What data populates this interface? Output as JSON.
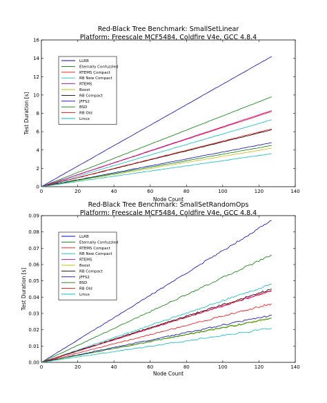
{
  "chart_data": [
    {
      "type": "line",
      "title": "Red-Black Tree Benchmark: SmallSetLinear",
      "subtitle": "Platform: Freescale MCF5484, Coldfire V4e, GCC 4.8.4",
      "xlabel": "Node Count",
      "ylabel": "Test Duration [s]",
      "xlim": [
        0,
        140
      ],
      "ylim": [
        0,
        16
      ],
      "xticks": [
        0,
        20,
        40,
        60,
        80,
        100,
        120,
        140
      ],
      "yticks": [
        0,
        2,
        4,
        6,
        8,
        10,
        12,
        14,
        16
      ],
      "x": [
        0,
        127
      ],
      "legend_position": "upper-left",
      "grid": false,
      "series": [
        {
          "name": "LLRB",
          "color": "#0000cc",
          "values": [
            0,
            14.2
          ]
        },
        {
          "name": "Eternally Confuzzled",
          "color": "#008000",
          "values": [
            0,
            9.8
          ]
        },
        {
          "name": "RTEMS Compact",
          "color": "#ff0000",
          "values": [
            0,
            8.2
          ]
        },
        {
          "name": "RB New Compact",
          "color": "#00bfbf",
          "values": [
            0,
            7.3
          ]
        },
        {
          "name": "RTEMS",
          "color": "#bf00bf",
          "values": [
            0,
            8.3
          ]
        },
        {
          "name": "Boost",
          "color": "#bfbf00",
          "values": [
            0,
            4.2
          ]
        },
        {
          "name": "RB Compact",
          "color": "#000000",
          "values": [
            0,
            6.2
          ]
        },
        {
          "name": "JFFS2",
          "color": "#0000cc",
          "values": [
            0,
            4.8
          ]
        },
        {
          "name": "BSD",
          "color": "#008000",
          "values": [
            0,
            4.5
          ]
        },
        {
          "name": "RB Old",
          "color": "#ff0000",
          "values": [
            0,
            6.3
          ]
        },
        {
          "name": "Linux",
          "color": "#00bfbf",
          "values": [
            0,
            3.6
          ]
        }
      ]
    },
    {
      "type": "line",
      "title": "Red-Black Tree Benchmark: SmallSetRandomOps",
      "subtitle": "Platform: Freescale MCF5484, Coldfire V4e, GCC 4.8.4",
      "xlabel": "Node Count",
      "ylabel": "Test Duration [s]",
      "xlim": [
        0,
        140
      ],
      "ylim": [
        0,
        0.09
      ],
      "xticks": [
        0,
        20,
        40,
        60,
        80,
        100,
        120,
        140
      ],
      "yticks": [
        "0.00",
        "0.01",
        "0.02",
        "0.03",
        "0.04",
        "0.05",
        "0.06",
        "0.07",
        "0.08",
        "0.09"
      ],
      "x": [
        0,
        127
      ],
      "legend_position": "upper-left",
      "grid": false,
      "series": [
        {
          "name": "LLRB",
          "color": "#0000cc",
          "values": [
            0,
            0.087
          ]
        },
        {
          "name": "Eternally Confuzzled",
          "color": "#008000",
          "values": [
            0,
            0.066
          ]
        },
        {
          "name": "RTEMS Compact",
          "color": "#ff0000",
          "values": [
            0,
            0.036
          ]
        },
        {
          "name": "RB New Compact",
          "color": "#00bfbf",
          "values": [
            0,
            0.048
          ]
        },
        {
          "name": "RTEMS",
          "color": "#bf00bf",
          "values": [
            0,
            0.044
          ]
        },
        {
          "name": "Boost",
          "color": "#bfbf00",
          "values": [
            0,
            0.027
          ]
        },
        {
          "name": "RB Compact",
          "color": "#000000",
          "values": [
            0,
            0.045
          ]
        },
        {
          "name": "JFFS2",
          "color": "#0000cc",
          "values": [
            0,
            0.029
          ]
        },
        {
          "name": "BSD",
          "color": "#008000",
          "values": [
            0,
            0.027
          ]
        },
        {
          "name": "RB Old",
          "color": "#ff0000",
          "values": [
            0,
            0.044
          ]
        },
        {
          "name": "Linux",
          "color": "#00bfbf",
          "values": [
            0,
            0.021
          ]
        }
      ]
    }
  ]
}
